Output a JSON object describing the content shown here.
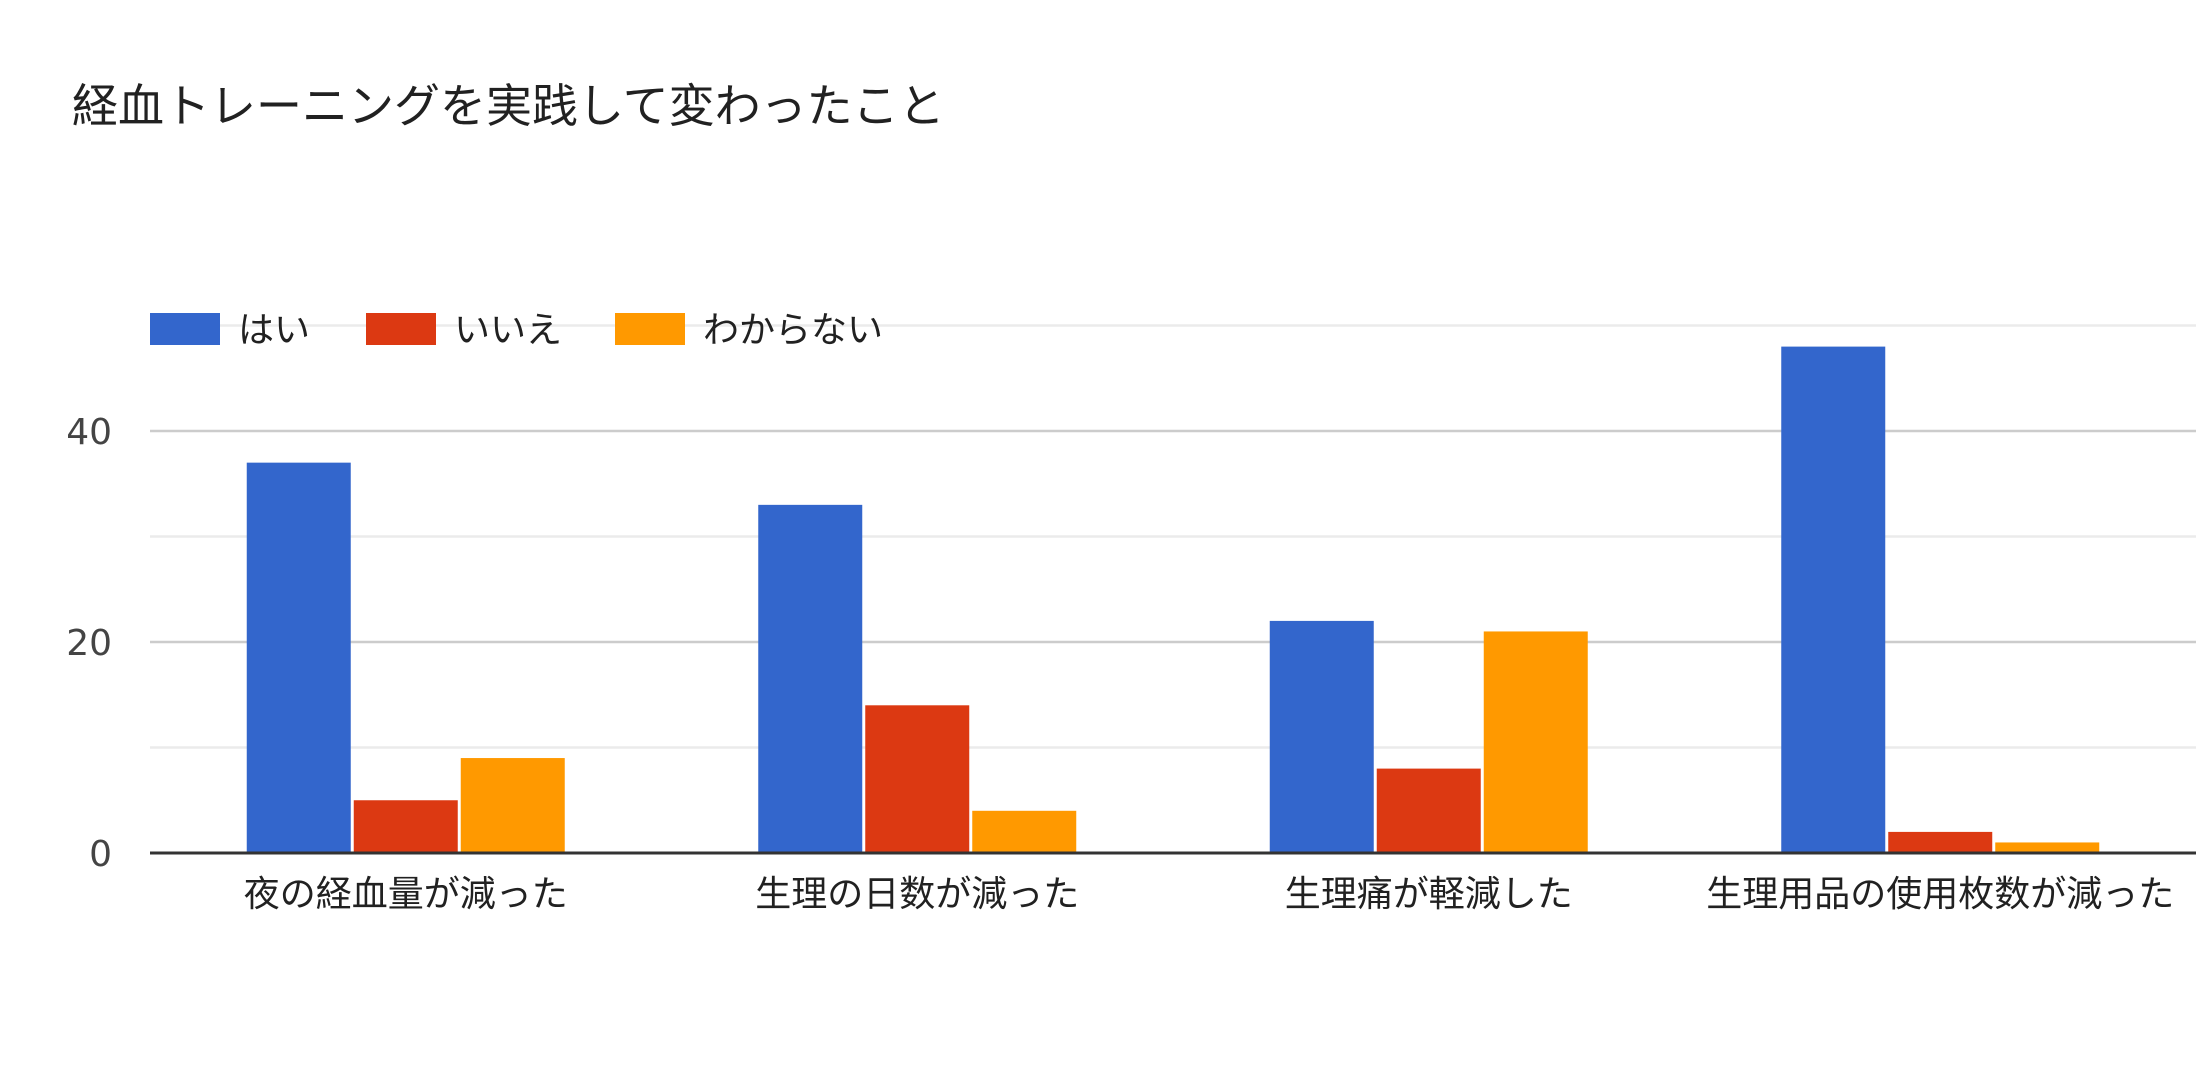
{
  "chart_data": {
    "type": "bar",
    "title": "経血トレーニングを実践して変わったこと",
    "xlabel": "",
    "ylabel": "",
    "categories": [
      "夜の経血量が減った",
      "生理の日数が減った",
      "生理痛が軽減した",
      "生理用品の使用枚数が減った"
    ],
    "series": [
      {
        "name": "はい",
        "color": "#3366cc",
        "values": [
          37,
          33,
          22,
          48
        ]
      },
      {
        "name": "いいえ",
        "color": "#dc3912",
        "values": [
          5,
          14,
          8,
          2
        ]
      },
      {
        "name": "わからない",
        "color": "#ff9900",
        "values": [
          9,
          4,
          21,
          1
        ]
      }
    ],
    "ylim": [
      0,
      50
    ],
    "yticks": [
      0,
      20,
      40
    ],
    "minor_gridlines": [
      10,
      30,
      50
    ],
    "grid": true,
    "legend_position": "top-left"
  }
}
